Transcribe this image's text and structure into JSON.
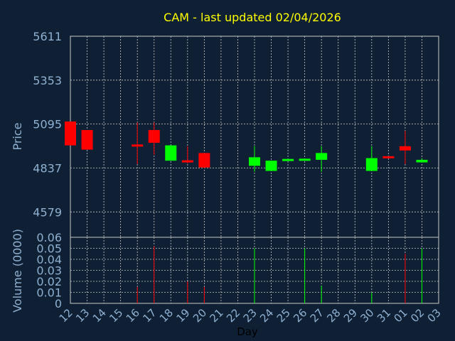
{
  "chart_data": {
    "type": "candlestick",
    "title": "CAM - last updated 02/04/2026",
    "xlabel": "Day",
    "ylabel": "Price",
    "volume_label": "Volume (0000)",
    "grid": true,
    "x_ticks": [
      "12",
      "13",
      "14",
      "15",
      "16",
      "17",
      "18",
      "19",
      "20",
      "21",
      "22",
      "23",
      "24",
      "25",
      "26",
      "27",
      "28",
      "29",
      "30",
      "31",
      "01",
      "02",
      "03"
    ],
    "price_ticks": [
      "5611",
      "5353",
      "5095",
      "4837",
      "4579"
    ],
    "price_ylim": [
      4430,
      5611
    ],
    "volume_ticks": [
      "0.06",
      "0.05",
      "0.04",
      "0.03",
      "0.02",
      "0.01",
      "0"
    ],
    "volume_ylim": [
      0,
      0.06
    ],
    "colors": {
      "up": "#00ff00",
      "down": "#ff0000",
      "title": "#ffff00",
      "axis_text": "#8fb0d0",
      "grid": "#c8c8c8",
      "background": "#0f2035"
    },
    "candles": [
      {
        "day": "12",
        "open": 5110,
        "high": 5110,
        "low": 4970,
        "close": 4970,
        "volume": 0
      },
      {
        "day": "13",
        "open": 5060,
        "high": 5060,
        "low": 4945,
        "close": 4945,
        "volume": 0
      },
      {
        "day": "16",
        "open": 4970,
        "high": 5105,
        "low": 4860,
        "close": 4968,
        "volume": 0.015
      },
      {
        "day": "17",
        "open": 5060,
        "high": 5105,
        "low": 4915,
        "close": 4985,
        "volume": 0.052
      },
      {
        "day": "18",
        "open": 4880,
        "high": 4970,
        "low": 4880,
        "close": 4970,
        "volume": 0
      },
      {
        "day": "19",
        "open": 4880,
        "high": 4965,
        "low": 4865,
        "close": 4872,
        "volume": 0.02
      },
      {
        "day": "20",
        "open": 4925,
        "high": 4925,
        "low": 4835,
        "close": 4840,
        "volume": 0.015
      },
      {
        "day": "23",
        "open": 4850,
        "high": 4965,
        "low": 4815,
        "close": 4900,
        "volume": 0.05
      },
      {
        "day": "24",
        "open": 4820,
        "high": 4880,
        "low": 4820,
        "close": 4880,
        "volume": 0
      },
      {
        "day": "25",
        "open": 4880,
        "high": 4890,
        "low": 4880,
        "close": 4888,
        "volume": 0
      },
      {
        "day": "26",
        "open": 4883,
        "high": 4890,
        "low": 4883,
        "close": 4888,
        "volume": 0.05
      },
      {
        "day": "27",
        "open": 4885,
        "high": 4965,
        "low": 4815,
        "close": 4925,
        "volume": 0.016
      },
      {
        "day": "30",
        "open": 4820,
        "high": 4965,
        "low": 4820,
        "close": 4895,
        "volume": 0.01
      },
      {
        "day": "31",
        "open": 4905,
        "high": 4905,
        "low": 4893,
        "close": 4895,
        "volume": 0
      },
      {
        "day": "01",
        "open": 4965,
        "high": 5055,
        "low": 4860,
        "close": 4940,
        "volume": 0.045
      },
      {
        "day": "02",
        "open": 4870,
        "high": 4895,
        "low": 4870,
        "close": 4885,
        "volume": 0.05
      }
    ]
  }
}
